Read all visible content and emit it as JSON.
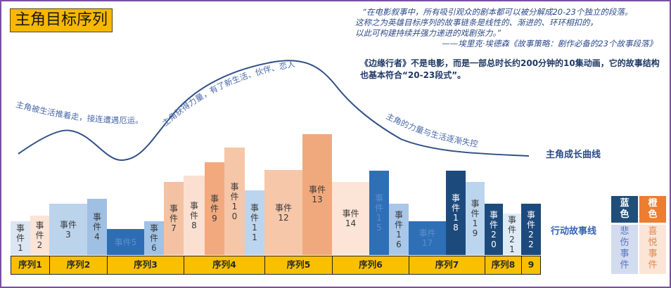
{
  "title": "主角目标序列",
  "quote": {
    "line1": "“在电影叙事中，所有吸引观众的剧本都可以被分解成20-23个独立的段落。",
    "line2": "这称之为英雄目标序列的故事链条是线性的、渐进的、环环相扣的，",
    "line3": "以此可构建持续并强力递进的戏剧张力。”",
    "source": "——埃里克·埃德森《故事策略：剧作必备的23个故事段落》"
  },
  "note": "《边缘行者》不是电影，而是一部总时长约200分钟的10集动画，它的故事结构也基本符合“20-23段式”。",
  "curve": {
    "label": "主角成长曲线",
    "annotations": [
      "主角被生活推着走，接连遭遇厄运。",
      "主角获得力量，有了新生活、伙伴、恋人",
      "主角的力量与生活逐渐失控"
    ],
    "color": "#2f4f86"
  },
  "action_label": "行动故事线",
  "events": [
    {
      "label": "事件1",
      "tone": "sad",
      "shade": "#dbe6f3",
      "level": 48,
      "vertical": true
    },
    {
      "label": "事件2",
      "tone": "joy",
      "shade": "#fbe3d6",
      "level": 56,
      "vertical": true
    },
    {
      "label": "事件3",
      "tone": "sad",
      "shade": "#bcd3ec",
      "level": 73,
      "vertical": false
    },
    {
      "label": "事件4",
      "tone": "sad",
      "shade": "#9fbfe3",
      "level": 80,
      "vertical": true
    },
    {
      "label": "事件5",
      "tone": "sad",
      "shade": "#2e6db4",
      "level": 37,
      "vertical": false
    },
    {
      "label": "事件6",
      "tone": "sad",
      "shade": "#9fc2e6",
      "level": 48,
      "vertical": true
    },
    {
      "label": "事件7",
      "tone": "joy",
      "shade": "#f4c2a2",
      "level": 104,
      "vertical": true
    },
    {
      "label": "事件8",
      "tone": "joy",
      "shade": "#fbe0d2",
      "level": 113,
      "vertical": true
    },
    {
      "label": "事件9",
      "tone": "joy",
      "shade": "#f1a97d",
      "level": 132,
      "vertical": true
    },
    {
      "label": "事件10",
      "tone": "joy",
      "shade": "#f6c6a8",
      "level": 153,
      "vertical": true
    },
    {
      "label": "事件11",
      "tone": "sad",
      "shade": "#bcd5ee",
      "level": 92,
      "vertical": true
    },
    {
      "label": "事件12",
      "tone": "joy",
      "shade": "#f6c7a9",
      "level": 121,
      "vertical": false
    },
    {
      "label": "事件13",
      "tone": "joy",
      "shade": "#f0a97c",
      "level": 172,
      "vertical": false
    },
    {
      "label": "事件14",
      "tone": "joy",
      "shade": "#fce4d6",
      "level": 104,
      "vertical": false
    },
    {
      "label": "事件15",
      "tone": "sad",
      "shade": "#2e6fb6",
      "level": 120,
      "vertical": true
    },
    {
      "label": "事件16",
      "tone": "sad",
      "shade": "#a9c7e8",
      "level": 73,
      "vertical": true
    },
    {
      "label": "事件17",
      "tone": "sad",
      "shade": "#2e6fb6",
      "level": 48,
      "vertical": false
    },
    {
      "label": "事件18",
      "tone": "sad",
      "shade": "#1d4a7c",
      "level": 120,
      "vertical": true
    },
    {
      "label": "事件19",
      "tone": "sad",
      "shade": "#bcd5ee",
      "level": 104,
      "vertical": true
    },
    {
      "label": "事件20",
      "tone": "sad",
      "shade": "#1d4a7c",
      "level": 73,
      "vertical": true
    },
    {
      "label": "事件21",
      "tone": "sad",
      "shade": "#deebf7",
      "level": 59,
      "vertical": true
    },
    {
      "label": "事件22",
      "tone": "sad",
      "shade": "#1d4a7c",
      "level": 73,
      "vertical": true
    }
  ],
  "sequences": [
    {
      "label": "序列1",
      "events": 2
    },
    {
      "label": "序列2",
      "events": 2
    },
    {
      "label": "序列3",
      "events": 3
    },
    {
      "label": "序列4",
      "events": 4
    },
    {
      "label": "序列5",
      "events": 2
    },
    {
      "label": "序列6",
      "events": 3
    },
    {
      "label": "序列7",
      "events": 3
    },
    {
      "label": "序列8",
      "events": 2
    },
    {
      "label": "9",
      "events": 1
    }
  ],
  "legend": {
    "blue_label": "蓝色",
    "orange_label": "橙色",
    "sad_label": "悲伤事件",
    "joy_label": "喜悦事件",
    "blue_color": "#1f4e79",
    "orange_color": "#ed7d31",
    "sad_bg": "#d3dbef",
    "joy_bg": "#fbe5d6",
    "sad_text": "#5a74c0",
    "joy_text": "#e08850"
  }
}
